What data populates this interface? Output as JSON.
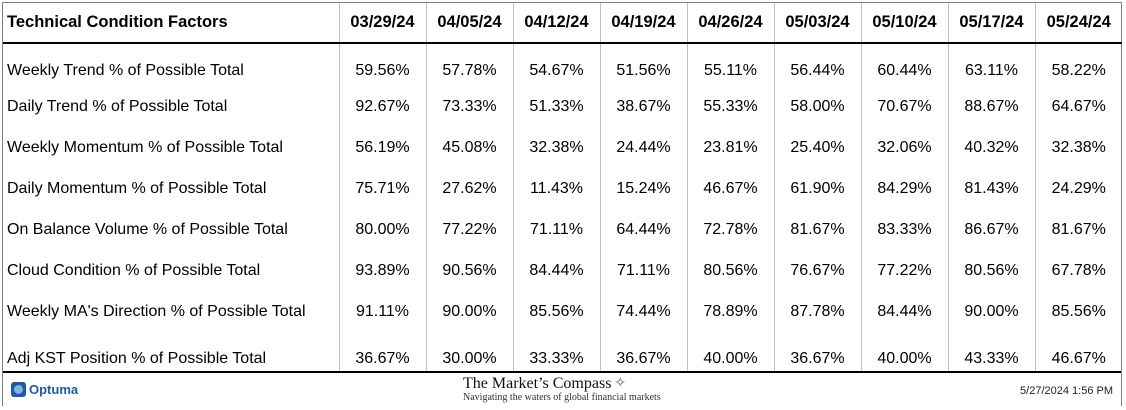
{
  "table": {
    "header": {
      "label": "Technical Condition Factors",
      "dates": [
        "03/29/24",
        "04/05/24",
        "04/12/24",
        "04/19/24",
        "04/26/24",
        "05/03/24",
        "05/10/24",
        "05/17/24",
        "05/24/24"
      ]
    },
    "rows": [
      {
        "label": "Weekly Trend % of Possible Total",
        "values": [
          "59.56%",
          "57.78%",
          "54.67%",
          "51.56%",
          "55.11%",
          "56.44%",
          "60.44%",
          "63.11%",
          "58.22%"
        ]
      },
      {
        "label": "Daily Trend % of Possible Total",
        "values": [
          "92.67%",
          "73.33%",
          "51.33%",
          "38.67%",
          "55.33%",
          "58.00%",
          "70.67%",
          "88.67%",
          "64.67%"
        ]
      },
      {
        "label": "Weekly Momentum % of Possible Total",
        "values": [
          "56.19%",
          "45.08%",
          "32.38%",
          "24.44%",
          "23.81%",
          "25.40%",
          "32.06%",
          "40.32%",
          "32.38%"
        ]
      },
      {
        "label": "Daily Momentum % of Possible Total",
        "values": [
          "75.71%",
          "27.62%",
          "11.43%",
          "15.24%",
          "46.67%",
          "61.90%",
          "84.29%",
          "81.43%",
          "24.29%"
        ]
      },
      {
        "label": "On Balance Volume % of Possible Total",
        "values": [
          "80.00%",
          "77.22%",
          "71.11%",
          "64.44%",
          "72.78%",
          "81.67%",
          "83.33%",
          "86.67%",
          "81.67%"
        ]
      },
      {
        "label": "Cloud Condition % of Possible Total",
        "values": [
          "93.89%",
          "90.56%",
          "84.44%",
          "71.11%",
          "80.56%",
          "76.67%",
          "77.22%",
          "80.56%",
          "67.78%"
        ]
      },
      {
        "label": "Weekly MA's Direction % of Possible Total",
        "values": [
          "91.11%",
          "90.00%",
          "85.56%",
          "74.44%",
          "78.89%",
          "87.78%",
          "84.44%",
          "90.00%",
          "85.56%"
        ]
      },
      {
        "label": "Adj KST Position % of Possible Total",
        "values": [
          "36.67%",
          "30.00%",
          "33.33%",
          "36.67%",
          "40.00%",
          "36.67%",
          "40.00%",
          "43.33%",
          "46.67%"
        ]
      }
    ]
  },
  "footer": {
    "logo_text": "Optuma",
    "logo_icon": "optuma-logo-icon",
    "compass_title": "The Market’s Compass",
    "compass_icon": "compass-rose-icon",
    "compass_subtitle": "Navigating the waters of global financial markets",
    "timestamp": "5/27/2024 1:56 PM"
  },
  "colors": {
    "optuma_blue": "#1f5a9e",
    "grid_line": "#bfbfbf",
    "rule": "#000000"
  }
}
